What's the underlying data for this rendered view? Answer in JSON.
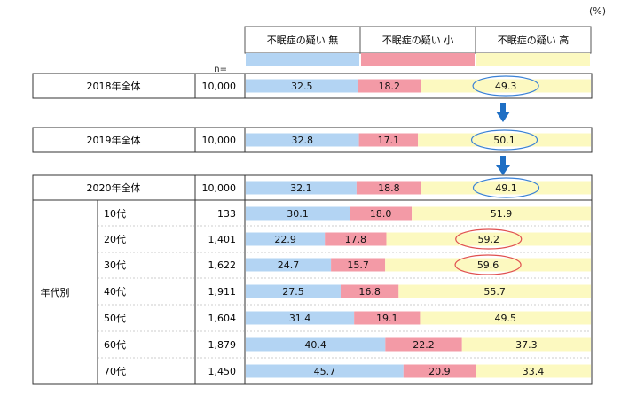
{
  "unit": "(%)",
  "n_label": "n=",
  "legend": [
    {
      "label": "不眠症の疑い 無",
      "color": "#b3d4f3"
    },
    {
      "label": "不眠症の疑い 小",
      "color": "#f39aa6"
    },
    {
      "label": "不眠症の疑い 高",
      "color": "#fcf9c0"
    }
  ],
  "age_group_label": "年代別",
  "chart_data": {
    "type": "bar",
    "orientation": "horizontal",
    "stacked": true,
    "normalized": true,
    "title": "",
    "xlabel": "",
    "ylabel": "",
    "xlim": [
      0,
      100
    ],
    "unit": "%",
    "series_names": [
      "不眠症の疑い 無",
      "不眠症の疑い 小",
      "不眠症の疑い 高"
    ],
    "rows": [
      {
        "label": "2018年全体",
        "n": "10,000",
        "values": [
          32.5,
          18.2,
          49.3
        ],
        "highlight": "blue"
      },
      {
        "label": "2019年全体",
        "n": "10,000",
        "values": [
          32.8,
          17.1,
          50.1
        ],
        "highlight": "blue"
      },
      {
        "label": "2020年全体",
        "n": "10,000",
        "values": [
          32.1,
          18.8,
          49.1
        ],
        "highlight": "blue"
      },
      {
        "label": "10代",
        "n": "133",
        "values": [
          30.1,
          18.0,
          51.9
        ]
      },
      {
        "label": "20代",
        "n": "1,401",
        "values": [
          22.9,
          17.8,
          59.2
        ],
        "highlight": "red"
      },
      {
        "label": "30代",
        "n": "1,622",
        "values": [
          24.7,
          15.7,
          59.6
        ],
        "highlight": "red"
      },
      {
        "label": "40代",
        "n": "1,911",
        "values": [
          27.5,
          16.8,
          55.7
        ]
      },
      {
        "label": "50代",
        "n": "1,604",
        "values": [
          31.4,
          19.1,
          49.5
        ]
      },
      {
        "label": "60代",
        "n": "1,879",
        "values": [
          40.4,
          22.2,
          37.3
        ]
      },
      {
        "label": "70代",
        "n": "1,450",
        "values": [
          45.7,
          20.9,
          33.4
        ]
      }
    ]
  }
}
